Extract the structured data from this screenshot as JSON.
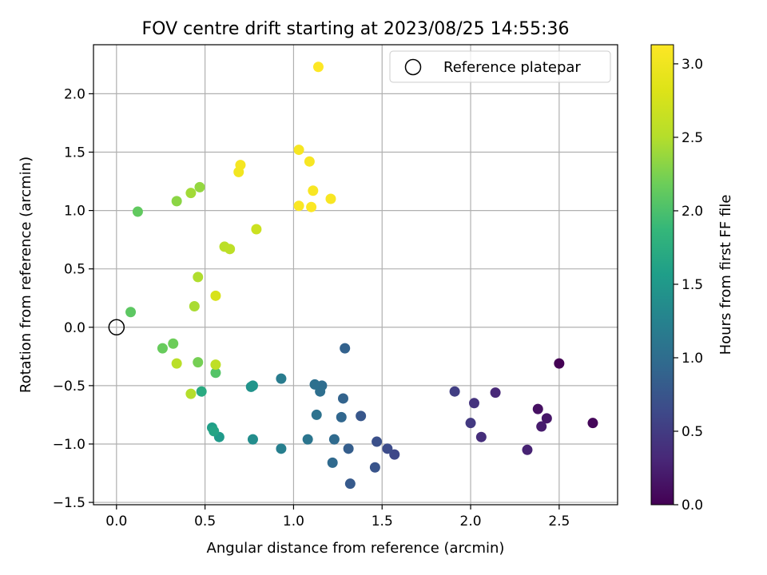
{
  "chart_data": {
    "type": "scatter",
    "title": "FOV centre drift starting at 2023/08/25 14:55:36",
    "xlabel": "Angular distance from reference (arcmin)",
    "ylabel": "Rotation from reference (arcmin)",
    "xlim": [
      -0.13,
      2.83
    ],
    "ylim": [
      -1.52,
      2.42
    ],
    "xticks": [
      "0.0",
      "0.5",
      "1.0",
      "1.5",
      "2.0",
      "2.5"
    ],
    "yticks": [
      "−1.5",
      "−1.0",
      "−0.5",
      "0.0",
      "0.5",
      "1.0",
      "1.5",
      "2.0"
    ],
    "grid": true,
    "legend": {
      "position": "top-right",
      "label": "Reference platepar"
    },
    "reference": {
      "x": 0.0,
      "y": 0.0
    },
    "colorbar": {
      "label": "Hours from first FF file",
      "range": [
        0,
        3.13
      ],
      "ticks": [
        "0.0",
        "0.5",
        "1.0",
        "1.5",
        "2.0",
        "2.5",
        "3.0"
      ],
      "colormap": "viridis"
    },
    "series": [
      {
        "points": [
          {
            "x": 2.5,
            "y": -0.31,
            "c": 0.0
          },
          {
            "x": 2.69,
            "y": -0.82,
            "c": 0.05
          },
          {
            "x": 2.38,
            "y": -0.7,
            "c": 0.12
          },
          {
            "x": 2.43,
            "y": -0.78,
            "c": 0.17
          },
          {
            "x": 2.4,
            "y": -0.85,
            "c": 0.22
          },
          {
            "x": 2.32,
            "y": -1.05,
            "c": 0.27
          },
          {
            "x": 2.14,
            "y": -0.56,
            "c": 0.32
          },
          {
            "x": 2.06,
            "y": -0.94,
            "c": 0.37
          },
          {
            "x": 2.02,
            "y": -0.65,
            "c": 0.42
          },
          {
            "x": 2.0,
            "y": -0.82,
            "c": 0.47
          },
          {
            "x": 1.91,
            "y": -0.55,
            "c": 0.52
          },
          {
            "x": 1.57,
            "y": -1.09,
            "c": 0.62
          },
          {
            "x": 1.53,
            "y": -1.04,
            "c": 0.66
          },
          {
            "x": 1.47,
            "y": -0.98,
            "c": 0.7
          },
          {
            "x": 1.46,
            "y": -1.2,
            "c": 0.74
          },
          {
            "x": 1.38,
            "y": -0.76,
            "c": 0.77
          },
          {
            "x": 1.32,
            "y": -1.34,
            "c": 0.8
          },
          {
            "x": 1.31,
            "y": -1.04,
            "c": 0.84
          },
          {
            "x": 1.29,
            "y": -0.18,
            "c": 0.88
          },
          {
            "x": 1.28,
            "y": -0.61,
            "c": 0.9
          },
          {
            "x": 1.27,
            "y": -0.77,
            "c": 0.93
          },
          {
            "x": 1.22,
            "y": -1.16,
            "c": 0.96
          },
          {
            "x": 1.23,
            "y": -0.96,
            "c": 0.98
          },
          {
            "x": 1.16,
            "y": -0.5,
            "c": 1.0
          },
          {
            "x": 1.15,
            "y": -0.55,
            "c": 1.02
          },
          {
            "x": 1.12,
            "y": -0.49,
            "c": 1.04
          },
          {
            "x": 1.13,
            "y": -0.75,
            "c": 1.06
          },
          {
            "x": 1.08,
            "y": -0.96,
            "c": 1.1
          },
          {
            "x": 0.93,
            "y": -0.44,
            "c": 1.18
          },
          {
            "x": 0.93,
            "y": -1.04,
            "c": 1.22
          },
          {
            "x": 0.77,
            "y": -0.96,
            "c": 1.38
          },
          {
            "x": 0.76,
            "y": -0.51,
            "c": 1.42
          },
          {
            "x": 0.77,
            "y": -0.5,
            "c": 1.46
          },
          {
            "x": 0.58,
            "y": -0.94,
            "c": 1.52
          },
          {
            "x": 0.54,
            "y": -0.86,
            "c": 1.58
          },
          {
            "x": 0.55,
            "y": -0.89,
            "c": 1.64
          },
          {
            "x": 0.48,
            "y": -0.55,
            "c": 1.72
          },
          {
            "x": 0.56,
            "y": -0.39,
            "c": 2.05
          },
          {
            "x": 0.08,
            "y": 0.13,
            "c": 2.1
          },
          {
            "x": 0.12,
            "y": 0.99,
            "c": 2.12
          },
          {
            "x": 0.26,
            "y": -0.18,
            "c": 2.15
          },
          {
            "x": 0.32,
            "y": -0.14,
            "c": 2.18
          },
          {
            "x": 0.46,
            "y": -0.3,
            "c": 2.22
          },
          {
            "x": 0.34,
            "y": 1.08,
            "c": 2.32
          },
          {
            "x": 0.47,
            "y": 1.2,
            "c": 2.36
          },
          {
            "x": 0.42,
            "y": 1.15,
            "c": 2.42
          },
          {
            "x": 0.44,
            "y": 0.18,
            "c": 2.45
          },
          {
            "x": 0.46,
            "y": 0.43,
            "c": 2.48
          },
          {
            "x": 0.42,
            "y": -0.57,
            "c": 2.5
          },
          {
            "x": 0.34,
            "y": -0.31,
            "c": 2.54
          },
          {
            "x": 0.56,
            "y": -0.32,
            "c": 2.58
          },
          {
            "x": 0.61,
            "y": 0.69,
            "c": 2.55
          },
          {
            "x": 0.64,
            "y": 0.67,
            "c": 2.57
          },
          {
            "x": 0.79,
            "y": 0.84,
            "c": 2.68
          },
          {
            "x": 0.56,
            "y": 0.27,
            "c": 2.78
          },
          {
            "x": 0.69,
            "y": 1.33,
            "c": 3.02
          },
          {
            "x": 0.7,
            "y": 1.39,
            "c": 3.05
          },
          {
            "x": 1.03,
            "y": 1.52,
            "c": 3.06
          },
          {
            "x": 1.09,
            "y": 1.42,
            "c": 3.07
          },
          {
            "x": 1.11,
            "y": 1.17,
            "c": 3.08
          },
          {
            "x": 1.21,
            "y": 1.1,
            "c": 3.08
          },
          {
            "x": 1.03,
            "y": 1.04,
            "c": 3.1
          },
          {
            "x": 1.1,
            "y": 1.03,
            "c": 3.11
          },
          {
            "x": 1.14,
            "y": 2.23,
            "c": 3.13
          }
        ]
      }
    ]
  }
}
